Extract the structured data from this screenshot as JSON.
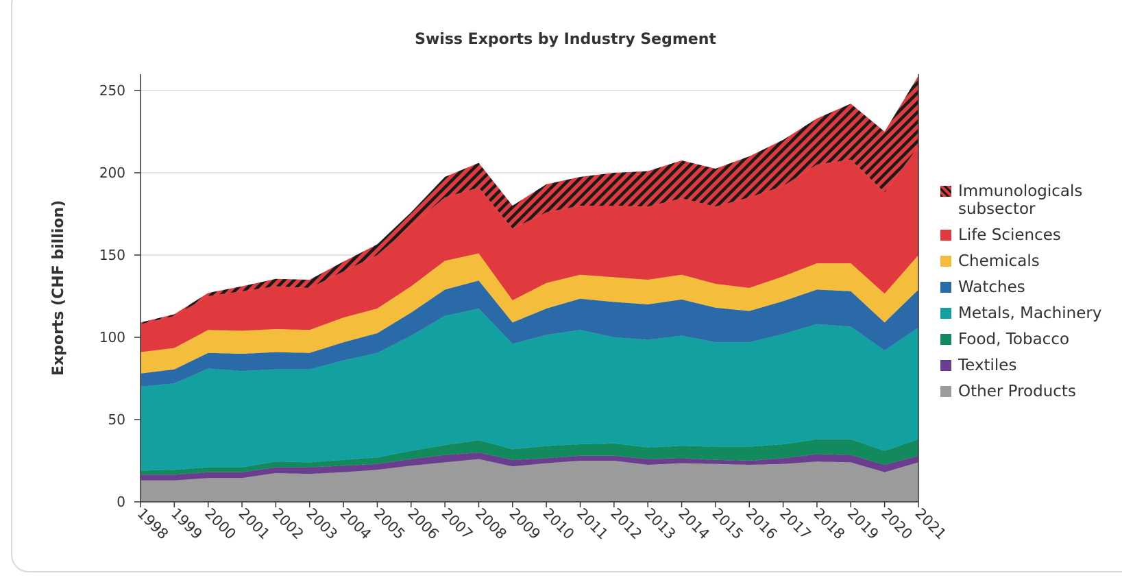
{
  "chart_data": {
    "type": "stacked_area",
    "title": "Swiss Exports by Industry Segment",
    "y_label": "Exports (CHF billion)",
    "x": [
      1998,
      1999,
      2000,
      2001,
      2002,
      2003,
      2004,
      2005,
      2006,
      2007,
      2008,
      2009,
      2010,
      2011,
      2012,
      2013,
      2014,
      2015,
      2016,
      2017,
      2018,
      2019,
      2020,
      2021
    ],
    "xlim": [
      1998,
      2021
    ],
    "ylim": [
      0,
      260
    ],
    "yticks": [
      0,
      50,
      100,
      150,
      200,
      250
    ],
    "grid": true,
    "legend": "right",
    "series": [
      {
        "name": "Other Products",
        "color": "#9b9b9b",
        "values": [
          13,
          13,
          14.5,
          14.5,
          17.5,
          17,
          18,
          19.5,
          22,
          24,
          26,
          21.5,
          23.5,
          25,
          25,
          22.5,
          23.5,
          23,
          22.5,
          23,
          24.5,
          24,
          18,
          24
        ]
      },
      {
        "name": "Textiles",
        "color": "#6b3d8f",
        "values": [
          3.5,
          3.5,
          3.5,
          3.5,
          3.5,
          4,
          4,
          3.5,
          4,
          4.5,
          4,
          4,
          3,
          3,
          3,
          3.5,
          3,
          2.5,
          2.5,
          3.5,
          4.5,
          4.5,
          4.5,
          4
        ]
      },
      {
        "name": "Food, Tobacco",
        "color": "#138a5e",
        "values": [
          2.5,
          3,
          3,
          3,
          3.5,
          3,
          3.5,
          4,
          5,
          6,
          7.5,
          6.5,
          7.5,
          7,
          7.5,
          7,
          7.5,
          8,
          8.5,
          8.5,
          9,
          9.5,
          8.5,
          10
        ]
      },
      {
        "name": "Metals, Machinery",
        "color": "#12a0a0",
        "values": [
          51,
          52.5,
          60,
          58.5,
          56,
          56.5,
          60.5,
          63.5,
          70,
          78.5,
          80,
          64,
          67.5,
          69.5,
          64.5,
          65.5,
          67,
          63.5,
          63.5,
          67,
          70,
          68.5,
          61,
          68
        ]
      },
      {
        "name": "Watches",
        "color": "#2b6aa8",
        "values": [
          8,
          8.5,
          9.5,
          10.5,
          10.5,
          10,
          11,
          12,
          14,
          16,
          17,
          13,
          16,
          19,
          21.5,
          21.5,
          22,
          21,
          19,
          20,
          21,
          21.5,
          17,
          23
        ]
      },
      {
        "name": "Chemicals",
        "color": "#f5bd3c",
        "values": [
          13,
          13,
          14,
          14,
          14,
          14,
          15,
          15,
          16,
          17.5,
          16.5,
          13.5,
          15.5,
          14.5,
          15,
          15,
          15,
          14.5,
          14,
          15,
          16,
          17,
          17.5,
          21
        ]
      },
      {
        "name": "Life Sciences",
        "color": "#e03a3e",
        "values": [
          17,
          19.5,
          20.5,
          24,
          26,
          25.5,
          28,
          32.5,
          37,
          38.5,
          40,
          43.5,
          43,
          42,
          43.5,
          44.5,
          46.5,
          47,
          55,
          55,
          60,
          63,
          61.5,
          66
        ]
      },
      {
        "name": "Immunologicals subsector",
        "color": "#e03a3e",
        "pattern": "hatch",
        "values": [
          1,
          1,
          2,
          3,
          4.5,
          5,
          6,
          6.5,
          8,
          12.5,
          15,
          14,
          17,
          17.5,
          20,
          21.5,
          23,
          23,
          25,
          28,
          28,
          34,
          37,
          43
        ]
      }
    ]
  }
}
